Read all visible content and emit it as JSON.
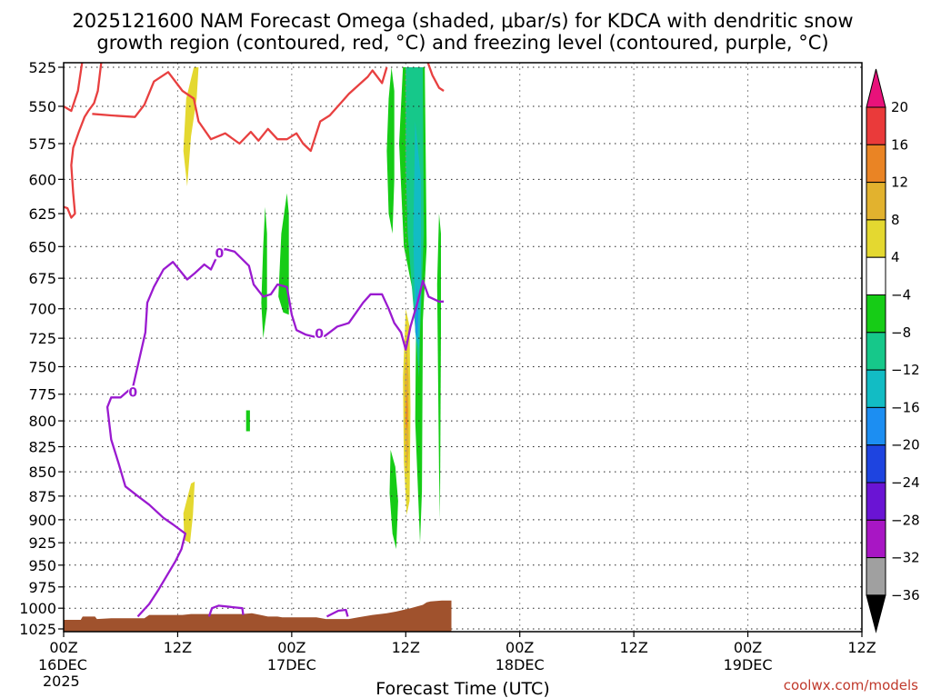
{
  "chart_data": {
    "type": "heatmap",
    "title": "2025121600 NAM Forecast Omega (shaded, μbar/s) for KDCA with dendritic snow growth region (contoured, red, °C) and freezing level (contoured, purple, °C)",
    "title_lines": [
      "2025121600 NAM Forecast Omega (shaded, μbar/s) for KDCA with dendritic snow",
      "growth region (contoured, red, °C) and freezing level (contoured, purple, °C)"
    ],
    "xlabel": "Forecast Time (UTC)",
    "ylabel": "",
    "credit": "coolwx.com/models",
    "x_hours_range": [
      0,
      84
    ],
    "y_axis": {
      "scale": "log",
      "reversed": true,
      "ylim": [
        1025,
        525
      ],
      "unit": "hPa"
    },
    "y_ticks": [
      525,
      550,
      575,
      600,
      625,
      650,
      675,
      700,
      725,
      750,
      775,
      800,
      825,
      850,
      875,
      900,
      925,
      950,
      975,
      1000,
      1025
    ],
    "x_ticks": [
      {
        "hour": 0,
        "line1": "00Z",
        "line2": "16DEC",
        "line3": "2025"
      },
      {
        "hour": 12,
        "line1": "12Z",
        "line2": "",
        "line3": ""
      },
      {
        "hour": 24,
        "line1": "00Z",
        "line2": "17DEC",
        "line3": ""
      },
      {
        "hour": 36,
        "line1": "12Z",
        "line2": "",
        "line3": ""
      },
      {
        "hour": 48,
        "line1": "00Z",
        "line2": "18DEC",
        "line3": ""
      },
      {
        "hour": 60,
        "line1": "12Z",
        "line2": "",
        "line3": ""
      },
      {
        "hour": 72,
        "line1": "00Z",
        "line2": "19DEC",
        "line3": ""
      },
      {
        "hour": 84,
        "line1": "12Z",
        "line2": "",
        "line3": ""
      }
    ],
    "colorbar": {
      "ticks": [
        "20",
        "16",
        "12",
        "8",
        "4",
        "−4",
        "−8",
        "−12",
        "−16",
        "−20",
        "−24",
        "−28",
        "−32",
        "−36"
      ],
      "levels": [
        {
          "lo": 20,
          "hi": 24,
          "color": "#e8127a"
        },
        {
          "lo": 16,
          "hi": 20,
          "color": "#ea3a3a"
        },
        {
          "lo": 12,
          "hi": 16,
          "color": "#ea8424"
        },
        {
          "lo": 8,
          "hi": 12,
          "color": "#e2b22e"
        },
        {
          "lo": 4,
          "hi": 8,
          "color": "#e4d830"
        },
        {
          "lo": -4,
          "hi": 4,
          "color": "#ffffff"
        },
        {
          "lo": -8,
          "hi": -4,
          "color": "#16cc16"
        },
        {
          "lo": -12,
          "hi": -8,
          "color": "#16c88a"
        },
        {
          "lo": -16,
          "hi": -12,
          "color": "#12bcc4"
        },
        {
          "lo": -20,
          "hi": -16,
          "color": "#1c8ef2"
        },
        {
          "lo": -24,
          "hi": -20,
          "color": "#1e44e0"
        },
        {
          "lo": -28,
          "hi": -24,
          "color": "#6a14d4"
        },
        {
          "lo": -32,
          "hi": -28,
          "color": "#a816c4"
        },
        {
          "lo": -36,
          "hi": -32,
          "color": "#a0a0a0"
        },
        {
          "lo": -40,
          "hi": -36,
          "color": "#000000"
        }
      ]
    },
    "omega_regions": [
      {
        "value": 6,
        "color": "#e4d830",
        "points": [
          [
            13.7,
            525
          ],
          [
            14.2,
            525
          ],
          [
            14.0,
            545
          ],
          [
            13.4,
            570
          ],
          [
            13.0,
            605
          ],
          [
            12.6,
            580
          ],
          [
            12.9,
            545
          ]
        ]
      },
      {
        "value": 6,
        "color": "#e4d830",
        "points": [
          [
            13.4,
            862
          ],
          [
            13.8,
            860
          ],
          [
            13.6,
            895
          ],
          [
            13.3,
            925
          ],
          [
            12.7,
            922
          ],
          [
            12.6,
            893
          ]
        ]
      },
      {
        "value": -6,
        "color": "#16cc16",
        "points": [
          [
            21.2,
            620
          ],
          [
            21.4,
            640
          ],
          [
            21.4,
            700
          ],
          [
            21.0,
            725
          ],
          [
            20.8,
            695
          ],
          [
            21.0,
            650
          ]
        ]
      },
      {
        "value": -6,
        "color": "#16cc16",
        "points": [
          [
            23.5,
            610
          ],
          [
            23.7,
            625
          ],
          [
            23.7,
            705
          ],
          [
            23.1,
            703
          ],
          [
            22.6,
            690
          ],
          [
            22.9,
            640
          ]
        ]
      },
      {
        "value": -6,
        "color": "#16cc16",
        "points": [
          [
            19.2,
            790
          ],
          [
            19.6,
            790
          ],
          [
            19.6,
            810
          ],
          [
            19.2,
            810
          ]
        ]
      },
      {
        "value": -6,
        "color": "#16cc16",
        "points": [
          [
            34.5,
            525
          ],
          [
            34.8,
            540
          ],
          [
            34.8,
            600
          ],
          [
            34.6,
            640
          ],
          [
            34.2,
            625
          ],
          [
            34.0,
            580
          ],
          [
            34.2,
            545
          ]
        ]
      },
      {
        "value": -6,
        "color": "#16cc16",
        "points": [
          [
            34.4,
            828
          ],
          [
            34.9,
            845
          ],
          [
            35.2,
            880
          ],
          [
            35.0,
            932
          ],
          [
            34.6,
            915
          ],
          [
            34.3,
            872
          ]
        ]
      },
      {
        "value": -6,
        "color": "#16cc16",
        "points": [
          [
            35.7,
            525
          ],
          [
            38.0,
            525
          ],
          [
            38.2,
            650
          ],
          [
            37.8,
            710
          ],
          [
            37.7,
            870
          ],
          [
            37.5,
            925
          ],
          [
            37.0,
            800
          ],
          [
            37.1,
            700
          ],
          [
            35.8,
            650
          ],
          [
            35.3,
            575
          ]
        ]
      },
      {
        "value": -10,
        "color": "#16c88a",
        "points": [
          [
            36.0,
            525
          ],
          [
            37.8,
            525
          ],
          [
            37.9,
            640
          ],
          [
            37.5,
            720
          ],
          [
            37.4,
            760
          ],
          [
            36.2,
            640
          ],
          [
            36.0,
            590
          ]
        ]
      },
      {
        "value": -14,
        "color": "#12bcc4",
        "points": [
          [
            37.0,
            560
          ],
          [
            37.6,
            600
          ],
          [
            37.6,
            680
          ],
          [
            37.4,
            735
          ],
          [
            37.0,
            720
          ],
          [
            36.8,
            640
          ]
        ]
      },
      {
        "value": -18,
        "color": "#1c8ef2",
        "points": [
          [
            37.2,
            680
          ],
          [
            37.3,
            700
          ],
          [
            37.2,
            730
          ],
          [
            37.05,
            715
          ]
        ]
      },
      {
        "value": 6,
        "color": "#e4d830",
        "points": [
          [
            36.0,
            700
          ],
          [
            36.4,
            715
          ],
          [
            36.5,
            790
          ],
          [
            36.4,
            880
          ],
          [
            36.1,
            895
          ],
          [
            35.8,
            840
          ],
          [
            35.7,
            760
          ]
        ]
      },
      {
        "value": 10,
        "color": "#e2b22e",
        "points": [
          [
            36.1,
            730
          ],
          [
            36.3,
            760
          ],
          [
            36.3,
            830
          ],
          [
            36.1,
            855
          ],
          [
            35.9,
            810
          ],
          [
            35.9,
            760
          ]
        ]
      },
      {
        "value": 14,
        "color": "#ea8424",
        "points": [
          [
            36.1,
            770
          ],
          [
            36.2,
            790
          ],
          [
            36.15,
            810
          ],
          [
            36.0,
            800
          ]
        ]
      },
      {
        "value": -6,
        "color": "#16cc16",
        "points": [
          [
            39.5,
            625
          ],
          [
            39.7,
            640
          ],
          [
            39.7,
            720
          ],
          [
            39.6,
            900
          ],
          [
            39.5,
            850
          ],
          [
            39.3,
            680
          ]
        ]
      }
    ],
    "dgz_contour": {
      "color": "#e84040",
      "segments": [
        [
          [
            0,
            550
          ],
          [
            0.8,
            553
          ],
          [
            1.5,
            540
          ],
          [
            2.2,
            512
          ],
          [
            3.0,
            512
          ],
          [
            4.0,
            512
          ],
          [
            4.0,
            520
          ],
          [
            3.6,
            540
          ],
          [
            3.2,
            548
          ],
          [
            2.6,
            553
          ],
          [
            2.2,
            557
          ],
          [
            1.6,
            567
          ],
          [
            1.0,
            578
          ],
          [
            0.8,
            590
          ],
          [
            1.0,
            610
          ],
          [
            1.2,
            625
          ],
          [
            0.8,
            628
          ],
          [
            0.4,
            621
          ],
          [
            0,
            620
          ]
        ],
        [
          [
            3.0,
            555
          ],
          [
            5.0,
            556
          ],
          [
            7.5,
            557
          ],
          [
            8.5,
            549
          ],
          [
            9.5,
            534
          ],
          [
            11.0,
            528
          ],
          [
            12.5,
            540
          ],
          [
            13.7,
            545
          ],
          [
            14.2,
            560
          ],
          [
            15.5,
            572
          ],
          [
            17.0,
            568
          ],
          [
            18.5,
            575
          ],
          [
            19.7,
            567
          ],
          [
            20.5,
            573
          ],
          [
            21.5,
            565
          ],
          [
            22.5,
            572
          ],
          [
            23.5,
            572
          ],
          [
            24.5,
            568
          ],
          [
            25.2,
            575
          ],
          [
            26.0,
            580
          ],
          [
            27.0,
            560
          ],
          [
            28.0,
            556
          ],
          [
            30.0,
            542
          ],
          [
            32.0,
            531
          ],
          [
            32.5,
            527
          ],
          [
            33.5,
            535
          ],
          [
            34.0,
            525
          ]
        ],
        [
          [
            36.0,
            512
          ],
          [
            37.5,
            512
          ],
          [
            38.2,
            520
          ],
          [
            38.8,
            530
          ],
          [
            39.5,
            538
          ],
          [
            40.0,
            540
          ]
        ]
      ]
    },
    "freezing_contour": {
      "color": "#9a1ad0",
      "label": "0",
      "segments": [
        [
          [
            7.8,
            1010
          ],
          [
            9.0,
            995
          ],
          [
            10.0,
            978
          ],
          [
            11.8,
            945
          ],
          [
            12.4,
            932
          ],
          [
            12.8,
            915
          ],
          [
            11.5,
            905
          ],
          [
            10.5,
            898
          ],
          [
            9.0,
            884
          ],
          [
            7.8,
            875
          ],
          [
            6.5,
            865
          ],
          [
            5.8,
            842
          ],
          [
            5.0,
            818
          ],
          [
            4.6,
            787
          ],
          [
            5.0,
            778
          ],
          [
            6.0,
            778
          ],
          [
            7.3,
            768
          ],
          [
            8.6,
            720
          ],
          [
            8.8,
            695
          ],
          [
            9.5,
            682
          ],
          [
            10.5,
            668
          ],
          [
            11.5,
            662
          ],
          [
            13.0,
            676
          ],
          [
            13.8,
            671
          ],
          [
            14.8,
            664
          ],
          [
            15.5,
            668
          ],
          [
            16.3,
            655
          ],
          [
            17.0,
            652
          ],
          [
            18.0,
            654
          ],
          [
            19.5,
            665
          ],
          [
            20.0,
            680
          ],
          [
            21.0,
            690
          ],
          [
            21.8,
            688
          ],
          [
            22.5,
            680
          ],
          [
            23.5,
            682
          ],
          [
            24.0,
            705
          ],
          [
            24.5,
            718
          ],
          [
            25.5,
            722
          ],
          [
            26.5,
            724
          ],
          [
            27.5,
            723
          ],
          [
            28.8,
            715
          ],
          [
            30.0,
            712
          ],
          [
            30.8,
            703
          ],
          [
            31.5,
            695
          ],
          [
            32.3,
            688
          ],
          [
            33.5,
            688
          ],
          [
            34.2,
            700
          ],
          [
            34.8,
            712
          ],
          [
            35.5,
            720
          ],
          [
            36.0,
            735
          ],
          [
            36.5,
            715
          ],
          [
            37.3,
            693
          ],
          [
            37.8,
            677
          ],
          [
            38.4,
            690
          ],
          [
            39.5,
            694
          ],
          [
            40.0,
            694
          ]
        ],
        [
          [
            15.3,
            1010
          ],
          [
            15.6,
            1000
          ],
          [
            16.3,
            997
          ],
          [
            18.8,
            1000
          ],
          [
            18.9,
            1008
          ]
        ],
        [
          [
            27.7,
            1010
          ],
          [
            28.9,
            1003
          ],
          [
            29.7,
            1002
          ],
          [
            29.9,
            1010
          ]
        ]
      ],
      "label_points": [
        [
          7.3,
          773
        ],
        [
          16.4,
          655
        ],
        [
          26.9,
          721
        ]
      ]
    },
    "terrain": {
      "color": "#a0522d",
      "top": [
        [
          0,
          1014
        ],
        [
          1.8,
          1014
        ],
        [
          2.0,
          1010
        ],
        [
          3.3,
          1010
        ],
        [
          3.5,
          1013
        ],
        [
          5.0,
          1012
        ],
        [
          8.5,
          1012
        ],
        [
          9.0,
          1008
        ],
        [
          12.5,
          1008
        ],
        [
          13.4,
          1007
        ],
        [
          18.8,
          1007
        ],
        [
          19.8,
          1006
        ],
        [
          20.7,
          1008
        ],
        [
          21.5,
          1010
        ],
        [
          22.5,
          1010
        ],
        [
          23.0,
          1011
        ],
        [
          26.6,
          1011
        ],
        [
          27.6,
          1013
        ],
        [
          30.0,
          1013
        ],
        [
          31.0,
          1011
        ],
        [
          32.5,
          1008
        ],
        [
          34.0,
          1006
        ],
        [
          35.0,
          1004
        ],
        [
          36.5,
          1000
        ],
        [
          37.8,
          996
        ],
        [
          38.2,
          993
        ],
        [
          38.6,
          992
        ],
        [
          39.8,
          991
        ]
      ]
    }
  }
}
